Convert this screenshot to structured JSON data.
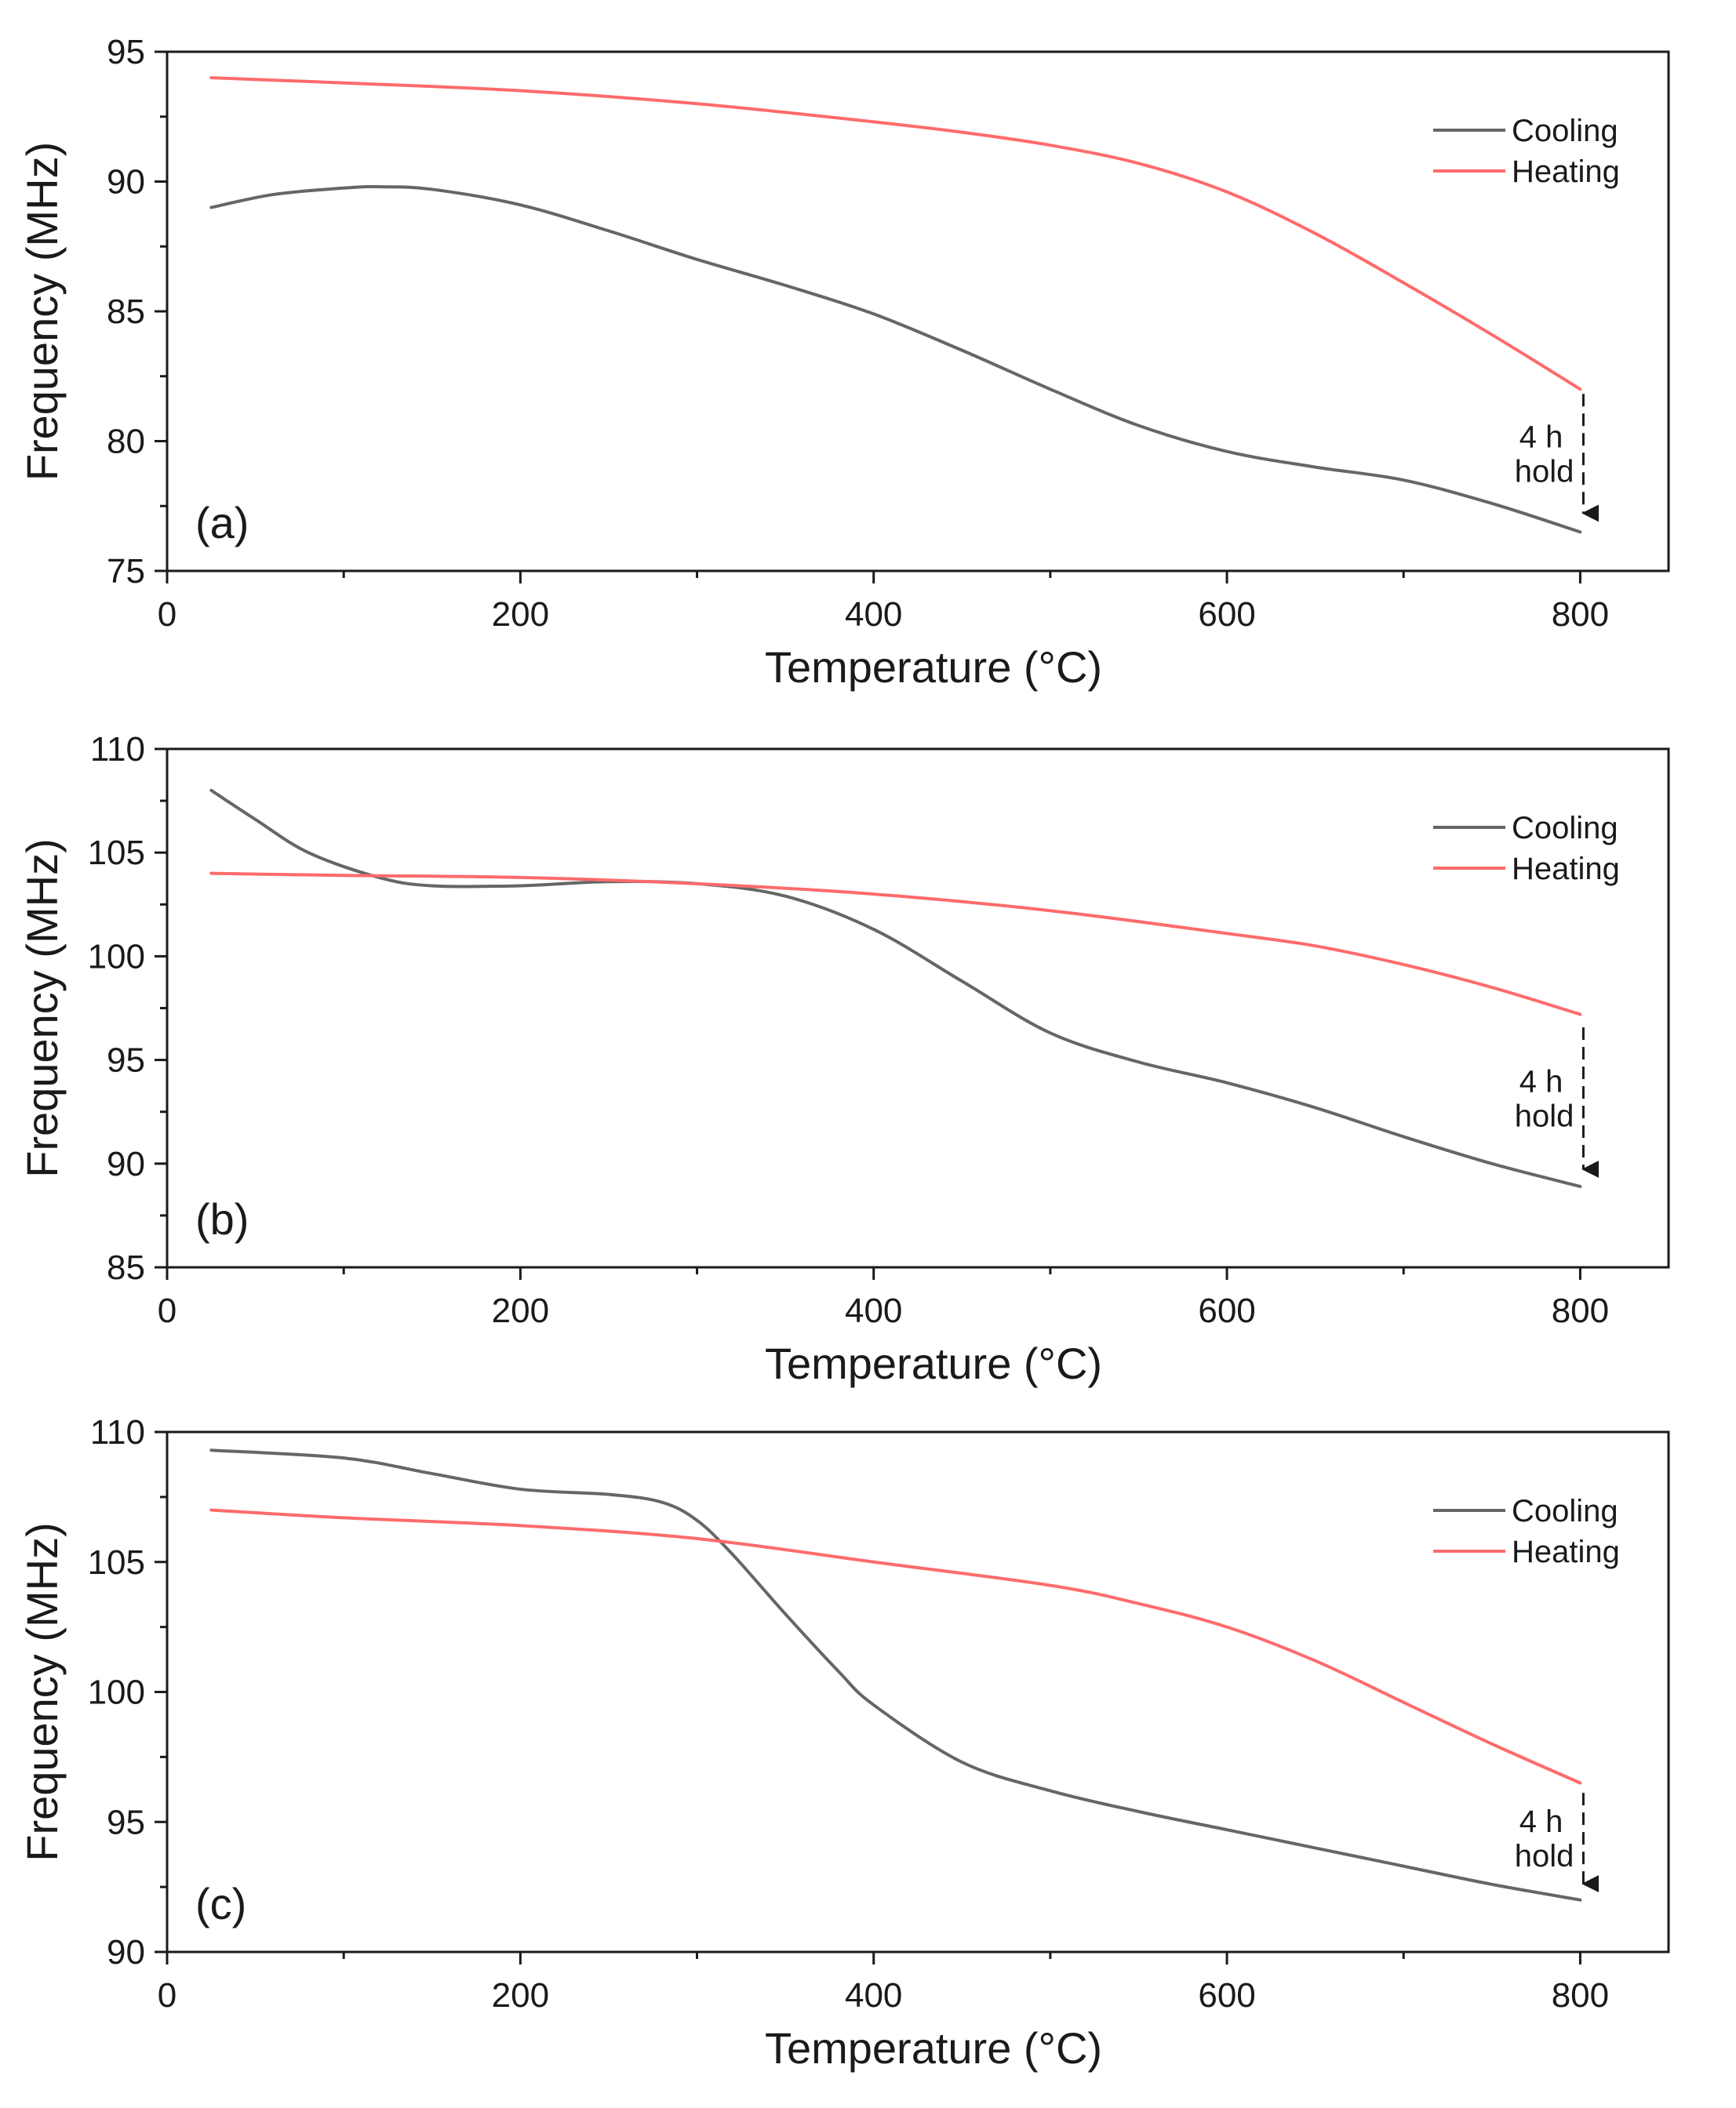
{
  "chart_data": [
    {
      "type": "line",
      "panel_label": "(a)",
      "xlabel": "Temperature (°C)",
      "ylabel": "Frequency (MHz)",
      "xlim": [
        0,
        850
      ],
      "ylim": [
        75,
        95
      ],
      "xticks": [
        0,
        200,
        400,
        600,
        800
      ],
      "yticks": [
        75,
        80,
        85,
        90,
        95
      ],
      "legend_position": "top-right",
      "annotation": {
        "line1": "4 h",
        "line2": "hold",
        "x": 800,
        "y_from": 82,
        "y_to": 76.8
      },
      "series": [
        {
          "name": "Cooling",
          "color": "#666666",
          "x": [
            25,
            60,
            100,
            120,
            150,
            200,
            250,
            300,
            350,
            400,
            450,
            500,
            550,
            600,
            650,
            700,
            750,
            800
          ],
          "y": [
            89.0,
            89.5,
            89.75,
            89.8,
            89.7,
            89.1,
            88.1,
            87.0,
            86.0,
            84.9,
            83.5,
            82.0,
            80.6,
            79.6,
            79.0,
            78.5,
            77.6,
            76.5
          ]
        },
        {
          "name": "Heating",
          "color": "#ff6b6b",
          "x": [
            25,
            100,
            200,
            300,
            400,
            450,
            500,
            550,
            600,
            650,
            700,
            750,
            800
          ],
          "y": [
            94.0,
            93.8,
            93.5,
            93.0,
            92.3,
            91.9,
            91.4,
            90.7,
            89.6,
            88.0,
            86.1,
            84.1,
            82.0
          ]
        }
      ]
    },
    {
      "type": "line",
      "panel_label": "(b)",
      "xlabel": "Temperature (°C)",
      "ylabel": "Frequency (MHz)",
      "xlim": [
        0,
        850
      ],
      "ylim": [
        85,
        110
      ],
      "xticks": [
        0,
        200,
        400,
        600,
        800
      ],
      "yticks": [
        85,
        90,
        95,
        100,
        105,
        110
      ],
      "legend_position": "top-right",
      "annotation": {
        "line1": "4 h",
        "line2": "hold",
        "x": 800,
        "y_from": 96.8,
        "y_to": 89.2
      },
      "series": [
        {
          "name": "Cooling",
          "color": "#666666",
          "x": [
            25,
            50,
            80,
            120,
            150,
            200,
            250,
            300,
            350,
            400,
            450,
            500,
            550,
            600,
            650,
            700,
            750,
            800
          ],
          "y": [
            108.0,
            106.6,
            105.0,
            103.8,
            103.4,
            103.4,
            103.6,
            103.5,
            102.9,
            101.3,
            98.8,
            96.3,
            94.9,
            93.9,
            92.7,
            91.3,
            90.0,
            88.9
          ]
        },
        {
          "name": "Heating",
          "color": "#ff6b6b",
          "x": [
            25,
            100,
            200,
            300,
            400,
            500,
            600,
            650,
            700,
            750,
            800
          ],
          "y": [
            104.0,
            103.9,
            103.8,
            103.5,
            103.0,
            102.2,
            101.1,
            100.5,
            99.6,
            98.5,
            97.2
          ]
        }
      ]
    },
    {
      "type": "line",
      "panel_label": "(c)",
      "xlabel": "Temperature (°C)",
      "ylabel": "Frequency (MHz)",
      "xlim": [
        0,
        850
      ],
      "ylim": [
        90,
        110
      ],
      "xticks": [
        0,
        200,
        400,
        600,
        800
      ],
      "yticks": [
        90,
        95,
        100,
        105,
        110
      ],
      "legend_position": "top-right",
      "annotation": {
        "line1": "4 h",
        "line2": "hold",
        "x": 800,
        "y_from": 96.3,
        "y_to": 92.2
      },
      "series": [
        {
          "name": "Cooling",
          "color": "#666666",
          "x": [
            25,
            100,
            150,
            200,
            250,
            280,
            300,
            320,
            350,
            380,
            400,
            450,
            500,
            550,
            600,
            650,
            700,
            750,
            800
          ],
          "y": [
            109.3,
            109.0,
            108.4,
            107.8,
            107.6,
            107.3,
            106.6,
            105.3,
            103.0,
            100.8,
            99.5,
            97.3,
            96.2,
            95.4,
            94.7,
            94.0,
            93.3,
            92.6,
            92.0
          ]
        },
        {
          "name": "Heating",
          "color": "#ff6b6b",
          "x": [
            25,
            100,
            200,
            300,
            400,
            500,
            550,
            600,
            650,
            700,
            750,
            800
          ],
          "y": [
            107.0,
            106.7,
            106.4,
            105.9,
            105.0,
            104.1,
            103.4,
            102.5,
            101.2,
            99.6,
            98.0,
            96.5
          ]
        }
      ]
    }
  ]
}
